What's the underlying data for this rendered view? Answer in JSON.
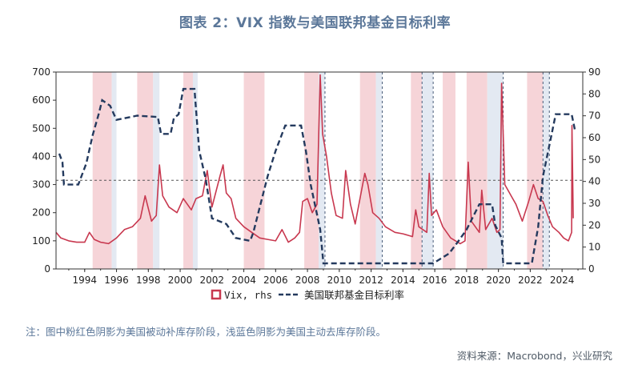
{
  "header": {
    "title": "图表 2：VIX 指数与美国联邦基金目标利率"
  },
  "footer": {
    "note": "注：图中粉红色阴影为美国被动补库存阶段，浅蓝色阴影为美国主动去库存阶段。",
    "source": "资料来源：Macrobond，兴业研究"
  },
  "colors": {
    "vix": "#c8384f",
    "ffr": "#243a5e",
    "pink": "#f6d4d8",
    "blue": "#e3e9f2",
    "axis": "#333333"
  },
  "chart_data": {
    "type": "line",
    "title": "VIX 指数与美国联邦基金目标利率",
    "xlim": [
      1992.2,
      2025.3
    ],
    "x_ticks": [
      "1994",
      "1996",
      "1998",
      "2000",
      "2002",
      "2004",
      "2006",
      "2008",
      "2010",
      "2012",
      "2014",
      "2016",
      "2018",
      "2020",
      "2022",
      "2024"
    ],
    "left_axis": {
      "ylim": [
        0,
        700
      ],
      "ticks": [
        "0",
        "100",
        "200",
        "300",
        "400",
        "500",
        "600",
        "700"
      ]
    },
    "right_axis": {
      "ylim": [
        0,
        90
      ],
      "ticks": [
        "0",
        "10",
        "20",
        "30",
        "40",
        "50",
        "60",
        "70",
        "80",
        "90"
      ]
    },
    "reference_line": {
      "axis": "left",
      "value": 315
    },
    "legend": {
      "position": "bottom",
      "entries": [
        "Vix, rhs",
        "美国联邦基金目标利率"
      ]
    },
    "shading": {
      "pink": [
        [
          1994.5,
          1995.7
        ],
        [
          1997.3,
          1998.3
        ],
        [
          2000.2,
          2000.8
        ],
        [
          2004.0,
          2005.3
        ],
        [
          2007.8,
          2008.7
        ],
        [
          2011.3,
          2012.3
        ],
        [
          2014.5,
          2015.2
        ],
        [
          2016.5,
          2017.3
        ],
        [
          2018.0,
          2019.3
        ],
        [
          2021.8,
          2022.8
        ]
      ],
      "blue": [
        [
          1995.7,
          1996.0
        ],
        [
          1998.3,
          1998.7
        ],
        [
          2000.8,
          2001.1
        ],
        [
          2008.7,
          2009.1
        ],
        [
          2012.3,
          2012.7
        ],
        [
          2015.2,
          2015.9
        ],
        [
          2019.3,
          2020.3
        ],
        [
          2022.8,
          2023.2
        ]
      ]
    },
    "vlines": [
      2009.1,
      2012.7,
      2015.2,
      2015.9,
      2020.3,
      2022.8,
      2023.2
    ],
    "series": [
      {
        "name": "美国联邦基金目标利率",
        "axis": "left",
        "style": "dashed",
        "points": [
          [
            1992.4,
            410
          ],
          [
            1992.6,
            380
          ],
          [
            1992.7,
            300
          ],
          [
            1993.6,
            300
          ],
          [
            1994.1,
            375
          ],
          [
            1994.5,
            475
          ],
          [
            1994.9,
            555
          ],
          [
            1995.1,
            600
          ],
          [
            1995.6,
            580
          ],
          [
            1996.0,
            530
          ],
          [
            1997.3,
            545
          ],
          [
            1998.6,
            540
          ],
          [
            1998.8,
            480
          ],
          [
            1999.4,
            480
          ],
          [
            1999.6,
            535
          ],
          [
            1999.9,
            550
          ],
          [
            2000.2,
            640
          ],
          [
            2000.9,
            640
          ],
          [
            2001.2,
            420
          ],
          [
            2001.6,
            320
          ],
          [
            2002.0,
            180
          ],
          [
            2002.9,
            160
          ],
          [
            2003.5,
            110
          ],
          [
            2004.4,
            100
          ],
          [
            2004.6,
            130
          ],
          [
            2005.0,
            220
          ],
          [
            2005.5,
            330
          ],
          [
            2006.0,
            420
          ],
          [
            2006.6,
            510
          ],
          [
            2007.6,
            510
          ],
          [
            2007.9,
            420
          ],
          [
            2008.2,
            300
          ],
          [
            2008.8,
            140
          ],
          [
            2009.0,
            20
          ],
          [
            2015.9,
            20
          ],
          [
            2016.9,
            55
          ],
          [
            2017.5,
            100
          ],
          [
            2018.0,
            140
          ],
          [
            2018.8,
            230
          ],
          [
            2019.6,
            230
          ],
          [
            2019.8,
            155
          ],
          [
            2020.2,
            110
          ],
          [
            2020.3,
            20
          ],
          [
            2022.1,
            20
          ],
          [
            2022.5,
            150
          ],
          [
            2022.8,
            330
          ],
          [
            2023.2,
            440
          ],
          [
            2023.6,
            550
          ],
          [
            2024.6,
            550
          ],
          [
            2024.8,
            495
          ]
        ]
      },
      {
        "name": "Vix, rhs",
        "axis": "left",
        "style": "solid",
        "points": [
          [
            1992.2,
            130
          ],
          [
            1992.5,
            110
          ],
          [
            1993.0,
            100
          ],
          [
            1993.5,
            95
          ],
          [
            1994.0,
            95
          ],
          [
            1994.3,
            130
          ],
          [
            1994.6,
            105
          ],
          [
            1995.0,
            95
          ],
          [
            1995.5,
            90
          ],
          [
            1996.0,
            110
          ],
          [
            1996.5,
            140
          ],
          [
            1997.0,
            150
          ],
          [
            1997.5,
            180
          ],
          [
            1997.8,
            260
          ],
          [
            1998.2,
            170
          ],
          [
            1998.5,
            190
          ],
          [
            1998.7,
            370
          ],
          [
            1998.9,
            260
          ],
          [
            1999.3,
            220
          ],
          [
            1999.8,
            200
          ],
          [
            2000.2,
            250
          ],
          [
            2000.7,
            210
          ],
          [
            2001.0,
            250
          ],
          [
            2001.4,
            260
          ],
          [
            2001.7,
            350
          ],
          [
            2002.0,
            220
          ],
          [
            2002.5,
            330
          ],
          [
            2002.7,
            370
          ],
          [
            2002.9,
            270
          ],
          [
            2003.2,
            250
          ],
          [
            2003.5,
            180
          ],
          [
            2004.0,
            150
          ],
          [
            2004.5,
            130
          ],
          [
            2005.0,
            110
          ],
          [
            2005.5,
            105
          ],
          [
            2006.0,
            100
          ],
          [
            2006.4,
            140
          ],
          [
            2006.8,
            95
          ],
          [
            2007.2,
            110
          ],
          [
            2007.5,
            130
          ],
          [
            2007.7,
            240
          ],
          [
            2008.0,
            250
          ],
          [
            2008.3,
            200
          ],
          [
            2008.6,
            230
          ],
          [
            2008.8,
            690
          ],
          [
            2008.95,
            480
          ],
          [
            2009.2,
            400
          ],
          [
            2009.5,
            270
          ],
          [
            2009.8,
            190
          ],
          [
            2010.2,
            180
          ],
          [
            2010.4,
            350
          ],
          [
            2010.7,
            230
          ],
          [
            2011.0,
            160
          ],
          [
            2011.6,
            340
          ],
          [
            2011.8,
            300
          ],
          [
            2012.1,
            200
          ],
          [
            2012.5,
            180
          ],
          [
            2012.9,
            150
          ],
          [
            2013.5,
            130
          ],
          [
            2014.0,
            125
          ],
          [
            2014.6,
            115
          ],
          [
            2014.8,
            210
          ],
          [
            2015.0,
            150
          ],
          [
            2015.5,
            130
          ],
          [
            2015.65,
            340
          ],
          [
            2015.8,
            190
          ],
          [
            2016.1,
            210
          ],
          [
            2016.5,
            150
          ],
          [
            2017.0,
            110
          ],
          [
            2017.6,
            90
          ],
          [
            2017.9,
            100
          ],
          [
            2018.1,
            380
          ],
          [
            2018.3,
            170
          ],
          [
            2018.8,
            130
          ],
          [
            2018.95,
            280
          ],
          [
            2019.2,
            140
          ],
          [
            2019.6,
            180
          ],
          [
            2019.9,
            130
          ],
          [
            2020.1,
            140
          ],
          [
            2020.2,
            660
          ],
          [
            2020.4,
            300
          ],
          [
            2020.8,
            260
          ],
          [
            2021.1,
            230
          ],
          [
            2021.5,
            170
          ],
          [
            2021.9,
            240
          ],
          [
            2022.2,
            300
          ],
          [
            2022.5,
            250
          ],
          [
            2022.8,
            240
          ],
          [
            2023.1,
            190
          ],
          [
            2023.4,
            150
          ],
          [
            2023.8,
            130
          ],
          [
            2024.1,
            110
          ],
          [
            2024.4,
            100
          ],
          [
            2024.6,
            130
          ],
          [
            2024.62,
            510
          ],
          [
            2024.7,
            180
          ]
        ]
      }
    ]
  }
}
